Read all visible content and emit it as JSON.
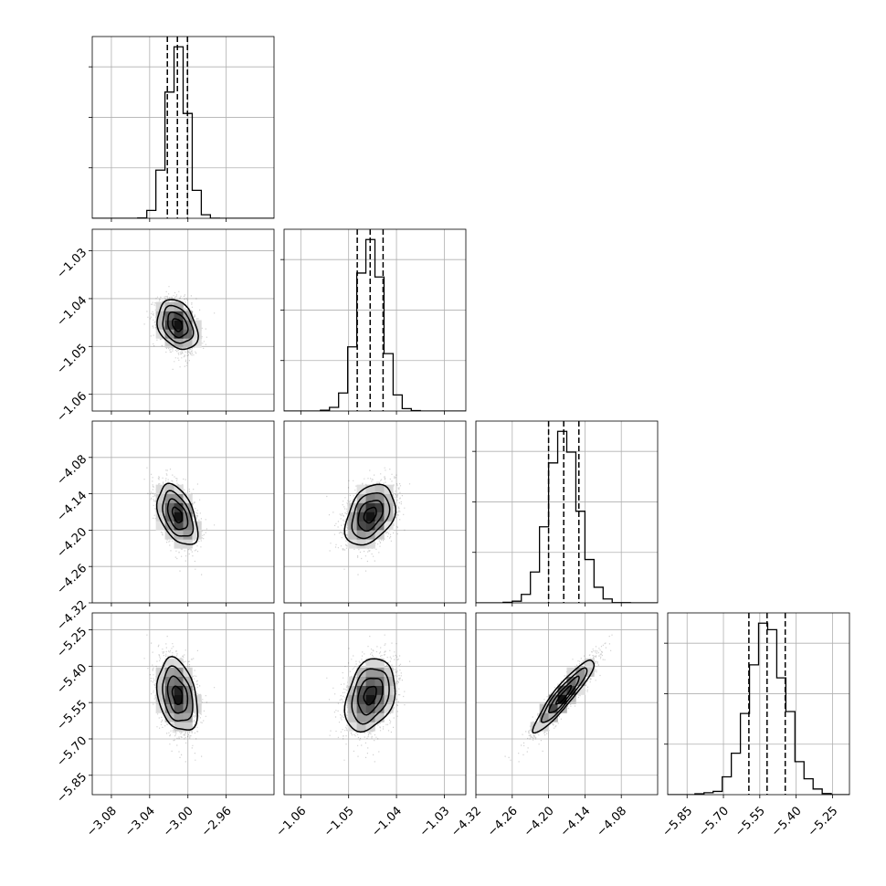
{
  "chart_data": {
    "type": "corner",
    "grid": true,
    "parameters": [
      {
        "center": -3.011,
        "std": 0.0105,
        "quantiles": [
          -3.0215,
          -3.011,
          -3.0005
        ],
        "range": [
          -3.1,
          -2.91
        ],
        "ticks": [
          -3.08,
          -3.04,
          -3.0,
          -2.96
        ],
        "tick_labels": [
          "−3.08",
          "−3.04",
          "−3.00",
          "−2.96"
        ]
      },
      {
        "center": -1.0455,
        "std": 0.0026,
        "quantiles": [
          -1.0482,
          -1.0455,
          -1.0428
        ],
        "range": [
          -1.0635,
          -1.0255
        ],
        "ticks": [
          -1.06,
          -1.05,
          -1.04,
          -1.03
        ],
        "tick_labels": [
          "−1.06",
          "−1.05",
          "−1.04",
          "−1.03"
        ]
      },
      {
        "center": -4.175,
        "std": 0.025,
        "quantiles": [
          -4.2,
          -4.175,
          -4.15
        ],
        "range": [
          -4.32,
          -4.02
        ],
        "ticks": [
          -4.32,
          -4.26,
          -4.2,
          -4.14,
          -4.08
        ],
        "tick_labels": [
          "−4.32",
          "−4.26",
          "−4.20",
          "−4.14",
          "−4.08"
        ]
      },
      {
        "center": -5.52,
        "std": 0.075,
        "quantiles": [
          -5.595,
          -5.52,
          -5.445
        ],
        "range": [
          -5.93,
          -5.18
        ],
        "ticks": [
          -5.85,
          -5.7,
          -5.55,
          -5.4,
          -5.25
        ],
        "tick_labels": [
          "−5.85",
          "−5.70",
          "−5.55",
          "−5.40",
          "−5.25"
        ]
      }
    ],
    "correlations": [
      {
        "pair": [
          0,
          1
        ],
        "rho": -0.3
      },
      {
        "pair": [
          0,
          2
        ],
        "rho": -0.45
      },
      {
        "pair": [
          1,
          2
        ],
        "rho": 0.35
      },
      {
        "pair": [
          0,
          3
        ],
        "rho": -0.3
      },
      {
        "pair": [
          1,
          3
        ],
        "rho": 0.3
      },
      {
        "pair": [
          2,
          3
        ],
        "rho": 0.92
      }
    ],
    "diag_y_ticks": [
      1,
      2,
      3
    ]
  }
}
